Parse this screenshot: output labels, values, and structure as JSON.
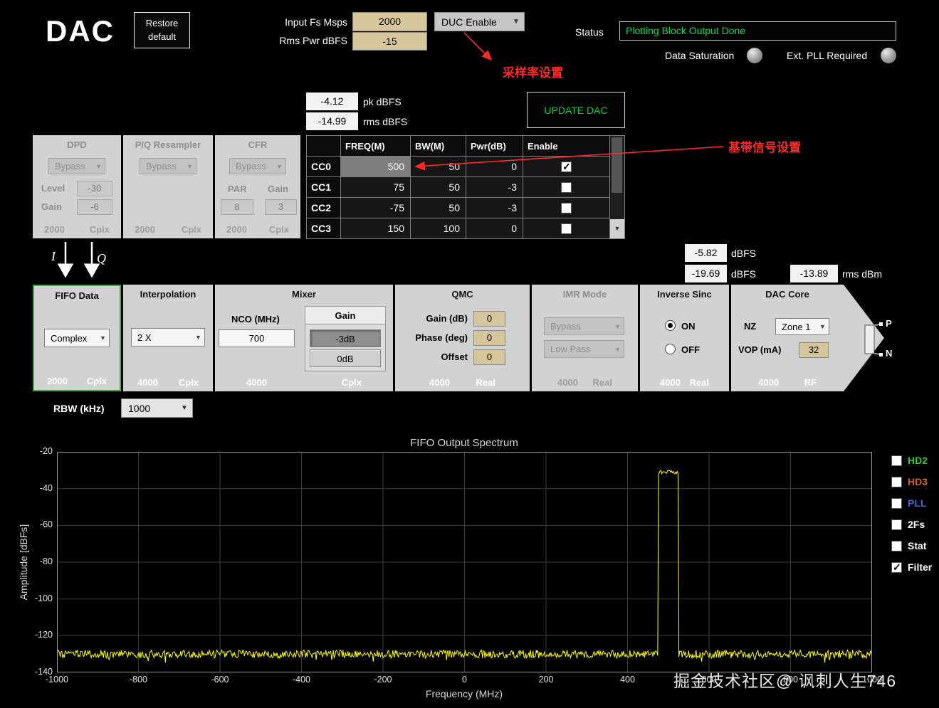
{
  "app_title": "DAC",
  "toolbar": {
    "restore_line1": "Restore",
    "restore_line2": "default",
    "input_fs_label": "Input Fs Msps",
    "input_fs_value": "2000",
    "rms_pwr_label": "Rms Pwr dBFS",
    "rms_pwr_value": "-15",
    "duc_enable_label": "DUC Enable",
    "status_label": "Status",
    "status_value": "Plotting Block Output Done",
    "data_saturation_label": "Data Saturation",
    "ext_pll_label": "Ext. PLL Required"
  },
  "annotations": {
    "sample_rate_note": "采样率设置",
    "baseband_note": "基带信号设置"
  },
  "signal_readouts": {
    "pk_dbfs_value": "-4.12",
    "pk_dbfs_label": "pk dBFS",
    "rms_dbfs_value": "-14.99",
    "rms_dbfs_label": "rms dBFS",
    "update_dac_label": "UPDATE DAC"
  },
  "output_readouts": {
    "pk_value": "-5.82",
    "pk_label": "dBFS",
    "rms_value": "-19.69",
    "rms_label": "dBFS",
    "rms_dbm_value": "-13.89",
    "rms_dbm_label": "rms dBm"
  },
  "cc_table": {
    "headers": {
      "freq": "FREQ(M)",
      "bw": "BW(M)",
      "pwr": "Pwr(dB)",
      "enable": "Enable"
    },
    "rows": [
      {
        "name": "CC0",
        "freq": "500",
        "bw": "50",
        "pwr": "0",
        "enabled": true,
        "selected": true
      },
      {
        "name": "CC1",
        "freq": "75",
        "bw": "50",
        "pwr": "-3",
        "enabled": false,
        "selected": false
      },
      {
        "name": "CC2",
        "freq": "-75",
        "bw": "50",
        "pwr": "-3",
        "enabled": false,
        "selected": false
      },
      {
        "name": "CC3",
        "freq": "150",
        "bw": "100",
        "pwr": "0",
        "enabled": false,
        "selected": false
      }
    ]
  },
  "blocks": {
    "dpd": {
      "title": "DPD",
      "bypass_label": "Bypass",
      "level_label": "Level",
      "level_value": "-30",
      "gain_label": "Gain",
      "gain_value": "-6",
      "rate": "2000",
      "format": "Cplx"
    },
    "resampler": {
      "title": "P/Q Resampler",
      "bypass_label": "Bypass",
      "rate": "2000",
      "format": "Cplx"
    },
    "cfr": {
      "title": "CFR",
      "bypass_label": "Bypass",
      "par_label": "PAR",
      "gain_label": "Gain",
      "par_value": "8",
      "gain_value": "3",
      "rate": "2000",
      "format": "Cplx"
    },
    "fifo": {
      "title": "FIFO Data",
      "mode": "Complex",
      "rate": "2000",
      "format": "Cplx"
    },
    "interpolation": {
      "title": "Interpolation",
      "value": "2 X",
      "rate": "4000",
      "format": "Cplx"
    },
    "mixer": {
      "title": "Mixer",
      "nco_label": "NCO (MHz)",
      "nco_value": "700",
      "gain_label": "Gain",
      "gain_options": [
        "-3dB",
        "0dB"
      ],
      "gain_selected": "-3dB",
      "rate": "4000",
      "format": "Cplx"
    },
    "qmc": {
      "title": "QMC",
      "gain_label": "Gain (dB)",
      "gain_value": "0",
      "phase_label": "Phase (deg)",
      "phase_value": "0",
      "offset_label": "Offset",
      "offset_value": "0",
      "rate": "4000",
      "format": "Real"
    },
    "imr": {
      "title": "IMR Mode",
      "option1": "Bypass",
      "option2": "Low Pass",
      "rate": "4000",
      "format": "Real"
    },
    "inverse_sinc": {
      "title": "Inverse Sinc",
      "on_label": "ON",
      "off_label": "OFF",
      "selected": "ON",
      "rate": "4000",
      "format": "Real"
    },
    "dac_core": {
      "title": "DAC Core",
      "nz_label": "NZ",
      "nz_value": "Zone 1",
      "vop_label": "VOP (mA)",
      "vop_value": "32",
      "rate": "4000",
      "format": "RF"
    }
  },
  "iq_labels": {
    "i": "I",
    "q": "Q"
  },
  "dac_output": {
    "p_label": "P",
    "n_label": "N"
  },
  "rbw": {
    "label": "RBW (kHz)",
    "value": "1000"
  },
  "chart_data": {
    "type": "line",
    "title": "FIFO Output Spectrum",
    "xlabel": "Frequency (MHz)",
    "ylabel": "Amplitude [dBFs]",
    "xlim": [
      -1000,
      1000
    ],
    "ylim": [
      -140,
      -20
    ],
    "x_ticks": [
      -1000,
      -800,
      -600,
      -400,
      -200,
      0,
      200,
      400,
      600,
      800,
      1000
    ],
    "y_ticks": [
      -20,
      -40,
      -60,
      -80,
      -100,
      -120,
      -140
    ],
    "grid": true,
    "legend_position": "right",
    "series": [
      {
        "name": "FIFO output spectrum",
        "color": "#ffff00",
        "noise_floor_dBFS": -130,
        "noise_jitter_dB": 2.2,
        "signal_band": {
          "start_MHz": 475,
          "end_MHz": 525,
          "level_dBFS": -31,
          "jitter_dB": 1.2
        }
      }
    ]
  },
  "legend": [
    {
      "label": "HD2",
      "color": "#2ecc2e",
      "checked": false
    },
    {
      "label": "HD3",
      "color": "#d2622a",
      "checked": false
    },
    {
      "label": "PLL",
      "color": "#4166e8",
      "checked": false
    },
    {
      "label": "2Fs",
      "color": "#ffffff",
      "checked": false
    },
    {
      "label": "Stat",
      "color": "#ffffff",
      "checked": false
    },
    {
      "label": "Filter",
      "color": "#ffffff",
      "checked": true
    }
  ],
  "watermark": "掘金技术社区@ 讽刺人生746"
}
